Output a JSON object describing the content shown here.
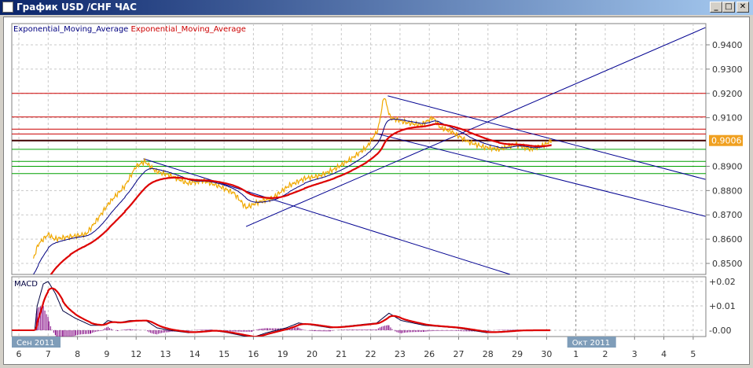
{
  "window": {
    "title": "График USD /CHF  ЧАС",
    "minimize_icon": "minimize-icon",
    "maximize_icon": "maximize-icon",
    "close_icon": "close-icon"
  },
  "legend": {
    "fast_ema": "Exponential_Moving_Average",
    "slow_ema": "Exponential_Moving_Average"
  },
  "colors": {
    "price": "#f0a800",
    "fast_ema": "#000080",
    "slow_ema": "#dd0000",
    "resistance": "#cc0000",
    "support": "#00a000",
    "trendline": "#000090",
    "current_price_bg": "#f0a020",
    "histogram": "#800080",
    "month_label_bg": "#7f9db9"
  },
  "chart_data": {
    "type": "line",
    "title": "График USD /CHF  ЧАС",
    "x_ticks": [
      "6",
      "7",
      "8",
      "9",
      "12",
      "13",
      "14",
      "15",
      "16",
      "19",
      "20",
      "21",
      "22",
      "23",
      "26",
      "27",
      "28",
      "29",
      "30",
      "1",
      "2",
      "3",
      "4",
      "5"
    ],
    "month_labels": [
      {
        "label": "Сен 2011",
        "at": "6"
      },
      {
        "label": "Окт 2011",
        "at": "1"
      }
    ],
    "y_ticks": [
      "0.9400",
      "0.9300",
      "0.9200",
      "0.9100",
      "0.8900",
      "0.8800",
      "0.8700",
      "0.8600",
      "0.8500"
    ],
    "ylim": [
      0.8455,
      0.9485
    ],
    "current_price": "0.9006",
    "price": [
      [
        "6 12",
        0.852
      ],
      [
        "6 16",
        0.858
      ],
      [
        "7 00",
        0.862
      ],
      [
        "7 05",
        0.86
      ],
      [
        "7 18",
        0.861
      ],
      [
        "8 07",
        0.862
      ],
      [
        "8 16",
        0.868
      ],
      [
        "9 02",
        0.875
      ],
      [
        "9 15",
        0.882
      ],
      [
        "12 00",
        0.89
      ],
      [
        "12 07",
        0.892
      ],
      [
        "12 16",
        0.888
      ],
      [
        "13 05",
        0.886
      ],
      [
        "13 18",
        0.883
      ],
      [
        "14 07",
        0.884
      ],
      [
        "14 19",
        0.882
      ],
      [
        "15 08",
        0.879
      ],
      [
        "15 18",
        0.873
      ],
      [
        "16 03",
        0.875
      ],
      [
        "16 16",
        0.877
      ],
      [
        "19 05",
        0.882
      ],
      [
        "19 18",
        0.885
      ],
      [
        "20 06",
        0.886
      ],
      [
        "20 19",
        0.889
      ],
      [
        "21 08",
        0.893
      ],
      [
        "21 21",
        0.898
      ],
      [
        "22 06",
        0.905
      ],
      [
        "22 11",
        0.919
      ],
      [
        "22 16",
        0.91
      ],
      [
        "23 05",
        0.908
      ],
      [
        "23 17",
        0.907
      ],
      [
        "26 03",
        0.91
      ],
      [
        "26 09",
        0.906
      ],
      [
        "26 19",
        0.904
      ],
      [
        "27 08",
        0.9
      ],
      [
        "27 20",
        0.898
      ],
      [
        "28 09",
        0.897
      ],
      [
        "28 22",
        0.899
      ],
      [
        "29 11",
        0.897
      ],
      [
        "29 23",
        0.899
      ],
      [
        "30 04",
        0.9006
      ]
    ],
    "horizontal_levels": {
      "resistance": [
        0.92,
        0.9103,
        0.9053,
        0.9033
      ],
      "current": 0.9006,
      "support": [
        0.897,
        0.892,
        0.89,
        0.887
      ]
    },
    "trendlines": [
      [
        [
          "12 06",
          0.8931
        ],
        [
          "28 18",
          0.8455
        ]
      ],
      [
        [
          "15 18",
          0.8652
        ],
        [
          "5 10",
          0.9471
        ]
      ],
      [
        [
          "22 14",
          0.919
        ],
        [
          "5 10",
          0.8846
        ]
      ],
      [
        [
          "22 05",
          0.9034
        ],
        [
          "5 10",
          0.8694
        ]
      ]
    ],
    "macd": {
      "label": "MACD",
      "y_ticks": [
        "+0.02",
        "+0.01",
        "-0.00"
      ],
      "ylim": [
        -0.0025,
        0.0215
      ],
      "values": [
        [
          "6 13",
          0.0
        ],
        [
          "6 15",
          0.01
        ],
        [
          "6 20",
          0.019
        ],
        [
          "7 00",
          0.02
        ],
        [
          "7 06",
          0.015
        ],
        [
          "7 12",
          0.008
        ],
        [
          "7 22",
          0.005
        ],
        [
          "8 11",
          0.002
        ],
        [
          "8 20",
          0.002
        ],
        [
          "9 01",
          0.004
        ],
        [
          "9 09",
          0.003
        ],
        [
          "9 19",
          0.004
        ],
        [
          "12 08",
          0.004
        ],
        [
          "12 17",
          0.001
        ],
        [
          "13 03",
          0.0
        ],
        [
          "13 19",
          -0.001
        ],
        [
          "14 14",
          0.0
        ],
        [
          "15 03",
          -0.001
        ],
        [
          "15 23",
          -0.003
        ],
        [
          "16 11",
          -0.001
        ],
        [
          "19 03",
          0.001
        ],
        [
          "19 13",
          0.003
        ],
        [
          "20 02",
          0.002
        ],
        [
          "20 15",
          0.001
        ],
        [
          "21 10",
          0.002
        ],
        [
          "22 05",
          0.003
        ],
        [
          "22 15",
          0.007
        ],
        [
          "23 01",
          0.004
        ],
        [
          "23 20",
          0.002
        ],
        [
          "26 22",
          0.001
        ],
        [
          "27 23",
          -0.001
        ],
        [
          "29 01",
          0.0
        ],
        [
          "30 03",
          0.0
        ]
      ]
    }
  }
}
